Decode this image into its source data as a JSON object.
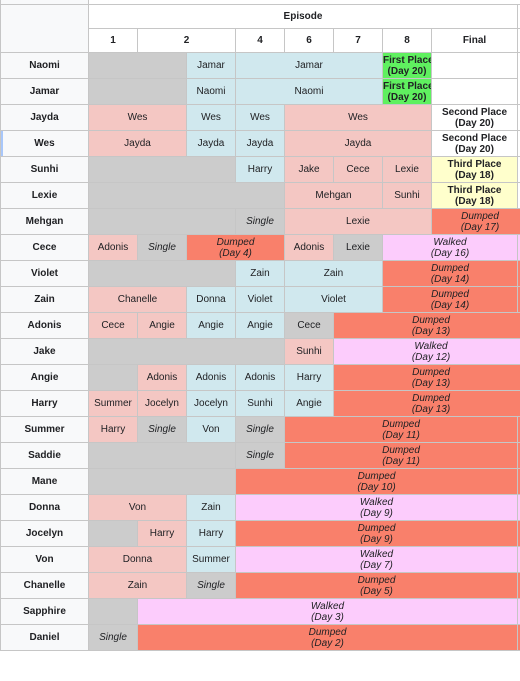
{
  "header": {
    "group_label": "Episode",
    "episodes": [
      "1",
      "2",
      "4",
      "6",
      "7",
      "8",
      "Final"
    ]
  },
  "rows": [
    {
      "name": "Naomi",
      "cells": [
        {
          "span": 2,
          "color": "gray"
        },
        {
          "span": 1,
          "color": "blue",
          "text": "Jamar"
        },
        {
          "span": 3,
          "color": "blue",
          "text": "Jamar"
        },
        {
          "span": 1,
          "color": "green",
          "text": "First Place",
          "text2": "(Day 20)",
          "bold": true
        },
        {
          "span": 1,
          "color": "white"
        }
      ]
    },
    {
      "name": "Jamar",
      "cells": [
        {
          "span": 2,
          "color": "gray"
        },
        {
          "span": 1,
          "color": "blue",
          "text": "Naomi"
        },
        {
          "span": 3,
          "color": "blue",
          "text": "Naomi"
        },
        {
          "span": 1,
          "color": "green",
          "text": "First Place",
          "text2": "(Day 20)",
          "bold": true
        },
        {
          "span": 1,
          "color": "white"
        }
      ]
    },
    {
      "name": "Jayda",
      "cells": [
        {
          "span": 2,
          "color": "pink",
          "text": "Wes"
        },
        {
          "span": 1,
          "color": "blue",
          "text": "Wes"
        },
        {
          "span": 1,
          "color": "blue",
          "text": "Wes"
        },
        {
          "span": 3,
          "color": "pink",
          "text": "Wes"
        },
        {
          "span": 1,
          "color": "white",
          "text": "Second Place",
          "text2": "(Day 20)",
          "bold": true
        },
        {
          "span": 1,
          "color": "white"
        }
      ]
    },
    {
      "name": "Wes",
      "selected": true,
      "cells": [
        {
          "span": 2,
          "color": "pink",
          "text": "Jayda"
        },
        {
          "span": 1,
          "color": "blue",
          "text": "Jayda"
        },
        {
          "span": 1,
          "color": "blue",
          "text": "Jayda"
        },
        {
          "span": 3,
          "color": "pink",
          "text": "Jayda"
        },
        {
          "span": 1,
          "color": "white",
          "text": "Second Place",
          "text2": "(Day 20)",
          "bold": true
        },
        {
          "span": 1,
          "color": "white"
        }
      ]
    },
    {
      "name": "Sunhi",
      "cells": [
        {
          "span": 3,
          "color": "gray"
        },
        {
          "span": 1,
          "color": "blue",
          "text": "Harry"
        },
        {
          "span": 1,
          "color": "pink",
          "text": "Jake"
        },
        {
          "span": 1,
          "color": "pink",
          "text": "Cece"
        },
        {
          "span": 1,
          "color": "pink",
          "text": "Lexie"
        },
        {
          "span": 1,
          "color": "yellow",
          "text": "Third Place",
          "text2": "(Day 18)",
          "bold": true
        },
        {
          "span": 1,
          "color": "white"
        }
      ]
    },
    {
      "name": "Lexie",
      "cells": [
        {
          "span": 4,
          "color": "gray"
        },
        {
          "span": 2,
          "color": "pink",
          "text": "Mehgan"
        },
        {
          "span": 1,
          "color": "pink",
          "text": "Sunhi"
        },
        {
          "span": 1,
          "color": "yellow",
          "text": "Third Place",
          "text2": "(Day 18)",
          "bold": true
        },
        {
          "span": 1,
          "color": "white"
        }
      ]
    },
    {
      "name": "Mehgan",
      "cells": [
        {
          "span": 3,
          "color": "gray"
        },
        {
          "span": 1,
          "color": "gray",
          "text": "Single",
          "italic": true
        },
        {
          "span": 3,
          "color": "pink",
          "text": "Lexie"
        },
        {
          "span": 2,
          "color": "red",
          "text": "Dumped",
          "text2": "(Day 17)",
          "italic": true
        }
      ]
    },
    {
      "name": "Cece",
      "cells": [
        {
          "span": 1,
          "color": "pink",
          "text": "Adonis"
        },
        {
          "span": 1,
          "color": "gray",
          "text": "Single",
          "italic": true
        },
        {
          "span": 2,
          "color": "red",
          "text": "Dumped",
          "text2": "(Day 4)",
          "italic": true
        },
        {
          "span": 1,
          "color": "pink",
          "text": "Adonis"
        },
        {
          "span": 1,
          "color": "gray",
          "text": "Lexie"
        },
        {
          "span": 2,
          "color": "lav",
          "text": "Walked",
          "text2": "(Day 16)",
          "italic": true
        },
        {
          "span": 1,
          "color": "lav"
        }
      ]
    },
    {
      "name": "Violet",
      "cells": [
        {
          "span": 3,
          "color": "gray"
        },
        {
          "span": 1,
          "color": "blue",
          "text": "Zain"
        },
        {
          "span": 2,
          "color": "blue",
          "text": "Zain"
        },
        {
          "span": 2,
          "color": "red",
          "text": "Dumped",
          "text2": "(Day 14)",
          "italic": true
        },
        {
          "span": 1,
          "color": "red"
        }
      ]
    },
    {
      "name": "Zain",
      "cells": [
        {
          "span": 2,
          "color": "pink",
          "text": "Chanelle"
        },
        {
          "span": 1,
          "color": "blue",
          "text": "Donna"
        },
        {
          "span": 1,
          "color": "blue",
          "text": "Violet"
        },
        {
          "span": 2,
          "color": "blue",
          "text": "Violet"
        },
        {
          "span": 2,
          "color": "red",
          "text": "Dumped",
          "text2": "(Day 14)",
          "italic": true
        },
        {
          "span": 1,
          "color": "red"
        }
      ]
    },
    {
      "name": "Adonis",
      "cells": [
        {
          "span": 1,
          "color": "pink",
          "text": "Cece"
        },
        {
          "span": 1,
          "color": "pink",
          "text": "Angie"
        },
        {
          "span": 1,
          "color": "blue",
          "text": "Angie"
        },
        {
          "span": 1,
          "color": "blue",
          "text": "Angie"
        },
        {
          "span": 1,
          "color": "gray",
          "text": "Cece"
        },
        {
          "span": 4,
          "color": "red",
          "text": "Dumped",
          "text2": "(Day 13)",
          "italic": true
        }
      ]
    },
    {
      "name": "Jake",
      "cells": [
        {
          "span": 4,
          "color": "gray"
        },
        {
          "span": 1,
          "color": "pink",
          "text": "Sunhi"
        },
        {
          "span": 4,
          "color": "lav",
          "text": "Walked",
          "text2": "(Day 12)",
          "italic": true
        }
      ]
    },
    {
      "name": "Angie",
      "cells": [
        {
          "span": 1,
          "color": "gray"
        },
        {
          "span": 1,
          "color": "pink",
          "text": "Adonis"
        },
        {
          "span": 1,
          "color": "blue",
          "text": "Adonis"
        },
        {
          "span": 1,
          "color": "blue",
          "text": "Adonis"
        },
        {
          "span": 1,
          "color": "blue",
          "text": "Harry"
        },
        {
          "span": 4,
          "color": "red",
          "text": "Dumped",
          "text2": "(Day 13)",
          "italic": true
        }
      ]
    },
    {
      "name": "Harry",
      "cells": [
        {
          "span": 1,
          "color": "pink",
          "text": "Summer"
        },
        {
          "span": 1,
          "color": "pink",
          "text": "Jocelyn"
        },
        {
          "span": 1,
          "color": "blue",
          "text": "Jocelyn"
        },
        {
          "span": 1,
          "color": "blue",
          "text": "Sunhi"
        },
        {
          "span": 1,
          "color": "blue",
          "text": "Angie"
        },
        {
          "span": 4,
          "color": "red",
          "text": "Dumped",
          "text2": "(Day 13)",
          "italic": true
        }
      ]
    },
    {
      "name": "Summer",
      "cells": [
        {
          "span": 1,
          "color": "pink",
          "text": "Harry"
        },
        {
          "span": 1,
          "color": "gray",
          "text": "Single",
          "italic": true
        },
        {
          "span": 1,
          "color": "blue",
          "text": "Von"
        },
        {
          "span": 1,
          "color": "gray",
          "text": "Single",
          "italic": true
        },
        {
          "span": 4,
          "color": "red",
          "text": "Dumped",
          "text2": "(Day 11)",
          "italic": true
        },
        {
          "span": 1,
          "color": "red"
        }
      ]
    },
    {
      "name": "Saddie",
      "cells": [
        {
          "span": 3,
          "color": "gray"
        },
        {
          "span": 1,
          "color": "gray",
          "text": "Single",
          "italic": true
        },
        {
          "span": 4,
          "color": "red",
          "text": "Dumped",
          "text2": "(Day 11)",
          "italic": true
        },
        {
          "span": 1,
          "color": "red"
        }
      ]
    },
    {
      "name": "Mane",
      "cells": [
        {
          "span": 3,
          "color": "gray"
        },
        {
          "span": 5,
          "color": "red",
          "text": "Dumped",
          "text2": "(Day 10)",
          "italic": true
        },
        {
          "span": 1,
          "color": "red"
        }
      ]
    },
    {
      "name": "Donna",
      "cells": [
        {
          "span": 2,
          "color": "pink",
          "text": "Von"
        },
        {
          "span": 1,
          "color": "blue",
          "text": "Zain"
        },
        {
          "span": 5,
          "color": "lav",
          "text": "Walked",
          "text2": "(Day 9)",
          "italic": true
        },
        {
          "span": 1,
          "color": "lav"
        }
      ]
    },
    {
      "name": "Jocelyn",
      "cells": [
        {
          "span": 1,
          "color": "gray"
        },
        {
          "span": 1,
          "color": "pink",
          "text": "Harry"
        },
        {
          "span": 1,
          "color": "blue",
          "text": "Harry"
        },
        {
          "span": 5,
          "color": "red",
          "text": "Dumped",
          "text2": "(Day 9)",
          "italic": true
        },
        {
          "span": 1,
          "color": "red"
        }
      ]
    },
    {
      "name": "Von",
      "cells": [
        {
          "span": 2,
          "color": "pink",
          "text": "Donna"
        },
        {
          "span": 1,
          "color": "blue",
          "text": "Summer"
        },
        {
          "span": 5,
          "color": "lav",
          "text": "Walked",
          "text2": "(Day 7)",
          "italic": true
        },
        {
          "span": 1,
          "color": "lav"
        }
      ]
    },
    {
      "name": "Chanelle",
      "cells": [
        {
          "span": 2,
          "color": "pink",
          "text": "Zain"
        },
        {
          "span": 1,
          "color": "gray",
          "text": "Single",
          "italic": true
        },
        {
          "span": 5,
          "color": "red",
          "text": "Dumped",
          "text2": "(Day 5)",
          "italic": true
        },
        {
          "span": 1,
          "color": "red"
        }
      ]
    },
    {
      "name": "Sapphire",
      "cells": [
        {
          "span": 1,
          "color": "gray"
        },
        {
          "span": 7,
          "color": "lav",
          "text": "Walked",
          "text2": "(Day 3)",
          "italic": true
        },
        {
          "span": 1,
          "color": "lav"
        }
      ]
    },
    {
      "name": "Daniel",
      "cells": [
        {
          "span": 1,
          "color": "gray",
          "text": "Single",
          "italic": true
        },
        {
          "span": 7,
          "color": "red",
          "text": "Dumped",
          "text2": "(Day 2)",
          "italic": true
        },
        {
          "span": 1,
          "color": "red"
        }
      ]
    }
  ]
}
